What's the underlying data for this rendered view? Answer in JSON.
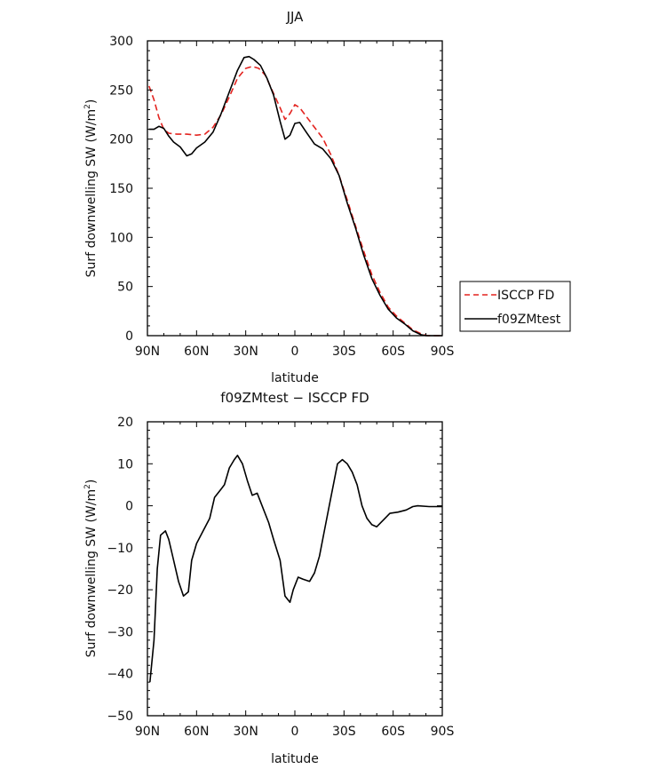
{
  "chart_data": [
    {
      "type": "line",
      "title": "JJA",
      "xlabel": "latitude",
      "ylabel": "Surf downwelling SW (W/m",
      "ylabel_sup": "2",
      "ylabel_close": ")",
      "xlim": [
        90,
        -90
      ],
      "ylim": [
        0,
        300
      ],
      "x_ticks": [
        {
          "v": 90,
          "label": "90N"
        },
        {
          "v": 60,
          "label": "60N"
        },
        {
          "v": 30,
          "label": "30N"
        },
        {
          "v": 0,
          "label": "0"
        },
        {
          "v": -30,
          "label": "30S"
        },
        {
          "v": -60,
          "label": "60S"
        },
        {
          "v": -90,
          "label": "90S"
        }
      ],
      "y_ticks": [
        0,
        50,
        100,
        150,
        200,
        250,
        300
      ],
      "grid": false,
      "legend": {
        "placement": "right-bottom",
        "entries": [
          "ISCCP FD",
          "f09ZMtest"
        ]
      },
      "series": [
        {
          "name": "ISCCP FD",
          "color": "#e3231f",
          "dash": true,
          "points": [
            [
              89,
              254
            ],
            [
              86,
              240
            ],
            [
              83,
              222
            ],
            [
              80,
              210
            ],
            [
              77,
              206
            ],
            [
              72,
              205
            ],
            [
              66,
              205
            ],
            [
              60,
              204
            ],
            [
              55,
              205
            ],
            [
              50,
              212
            ],
            [
              45,
              225
            ],
            [
              40,
              243
            ],
            [
              35,
              262
            ],
            [
              30,
              272
            ],
            [
              26,
              274
            ],
            [
              22,
              272
            ],
            [
              18,
              265
            ],
            [
              14,
              250
            ],
            [
              9,
              232
            ],
            [
              6,
              220
            ],
            [
              3,
              226
            ],
            [
              0,
              235
            ],
            [
              -3,
              232
            ],
            [
              -7,
              223
            ],
            [
              -12,
              212
            ],
            [
              -17,
              201
            ],
            [
              -22,
              184
            ],
            [
              -27,
              163
            ],
            [
              -32,
              138
            ],
            [
              -37,
              112
            ],
            [
              -42,
              86
            ],
            [
              -47,
              62
            ],
            [
              -52,
              44
            ],
            [
              -57,
              29
            ],
            [
              -62,
              20
            ],
            [
              -67,
              13
            ],
            [
              -72,
              6
            ],
            [
              -77,
              2
            ],
            [
              -81,
              0
            ],
            [
              -90,
              0
            ]
          ]
        },
        {
          "name": "f09ZMtest",
          "color": "#000000",
          "dash": false,
          "points": [
            [
              89,
              210
            ],
            [
              86,
              210
            ],
            [
              83,
              213
            ],
            [
              80,
              211
            ],
            [
              77,
              203
            ],
            [
              74,
              197
            ],
            [
              70,
              192
            ],
            [
              66,
              183
            ],
            [
              63,
              185
            ],
            [
              60,
              191
            ],
            [
              55,
              197
            ],
            [
              50,
              207
            ],
            [
              45,
              226
            ],
            [
              40,
              248
            ],
            [
              35,
              270
            ],
            [
              31,
              283
            ],
            [
              28,
              284
            ],
            [
              25,
              281
            ],
            [
              21,
              275
            ],
            [
              17,
              262
            ],
            [
              13,
              245
            ],
            [
              9,
              218
            ],
            [
              6,
              200
            ],
            [
              3,
              204
            ],
            [
              0,
              216
            ],
            [
              -3,
              217
            ],
            [
              -7,
              207
            ],
            [
              -12,
              195
            ],
            [
              -17,
              190
            ],
            [
              -22,
              180
            ],
            [
              -27,
              163
            ],
            [
              -32,
              135
            ],
            [
              -37,
              110
            ],
            [
              -42,
              82
            ],
            [
              -47,
              58
            ],
            [
              -52,
              41
            ],
            [
              -57,
              27
            ],
            [
              -62,
              18
            ],
            [
              -67,
              12
            ],
            [
              -72,
              5
            ],
            [
              -77,
              1
            ],
            [
              -80,
              0
            ],
            [
              -90,
              0
            ]
          ]
        }
      ]
    },
    {
      "type": "line",
      "title": "f09ZMtest  −  ISCCP FD",
      "xlabel": "latitude",
      "ylabel": "Surf downwelling SW (W/m",
      "ylabel_sup": "2",
      "ylabel_close": ")",
      "xlim": [
        90,
        -90
      ],
      "ylim": [
        -50,
        20
      ],
      "x_ticks": [
        {
          "v": 90,
          "label": "90N"
        },
        {
          "v": 60,
          "label": "60N"
        },
        {
          "v": 30,
          "label": "30N"
        },
        {
          "v": 0,
          "label": "0"
        },
        {
          "v": -30,
          "label": "30S"
        },
        {
          "v": -60,
          "label": "60S"
        },
        {
          "v": -90,
          "label": "90S"
        }
      ],
      "y_ticks": [
        -50,
        -40,
        -30,
        -20,
        -10,
        0,
        10,
        20
      ],
      "y_tick_labels": [
        "−50",
        "−40",
        "−30",
        "−20",
        "−10",
        "0",
        "10",
        "20"
      ],
      "grid": false,
      "series": [
        {
          "name": "",
          "color": "#000000",
          "dash": false,
          "points": [
            [
              88.5,
              -42
            ],
            [
              86,
              -32
            ],
            [
              84,
              -15
            ],
            [
              82,
              -7
            ],
            [
              79,
              -6
            ],
            [
              77,
              -8
            ],
            [
              74,
              -13
            ],
            [
              71,
              -18
            ],
            [
              68,
              -21.5
            ],
            [
              65,
              -20.5
            ],
            [
              63,
              -13
            ],
            [
              60,
              -9
            ],
            [
              56,
              -6
            ],
            [
              52,
              -3
            ],
            [
              49,
              2
            ],
            [
              45,
              4
            ],
            [
              43,
              5
            ],
            [
              40,
              9
            ],
            [
              37,
              11
            ],
            [
              35,
              12
            ],
            [
              32,
              10
            ],
            [
              29,
              6
            ],
            [
              26,
              2.5
            ],
            [
              23,
              3
            ],
            [
              20,
              0
            ],
            [
              16,
              -4
            ],
            [
              13,
              -8
            ],
            [
              9,
              -13
            ],
            [
              6,
              -21.5
            ],
            [
              3,
              -23
            ],
            [
              1,
              -20
            ],
            [
              -2,
              -17
            ],
            [
              -5,
              -17.5
            ],
            [
              -9,
              -18
            ],
            [
              -12,
              -16
            ],
            [
              -15,
              -12
            ],
            [
              -18,
              -6
            ],
            [
              -21,
              0
            ],
            [
              -24,
              6
            ],
            [
              -26,
              10
            ],
            [
              -29,
              11
            ],
            [
              -32,
              10
            ],
            [
              -35,
              8
            ],
            [
              -38,
              5
            ],
            [
              -41,
              0
            ],
            [
              -44,
              -3
            ],
            [
              -47,
              -4.5
            ],
            [
              -50,
              -5
            ],
            [
              -55,
              -3
            ],
            [
              -58,
              -1.8
            ],
            [
              -63,
              -1.5
            ],
            [
              -68,
              -1
            ],
            [
              -72,
              -0.2
            ],
            [
              -75,
              0
            ],
            [
              -82,
              -0.2
            ],
            [
              -90,
              -0.2
            ]
          ]
        }
      ]
    }
  ]
}
